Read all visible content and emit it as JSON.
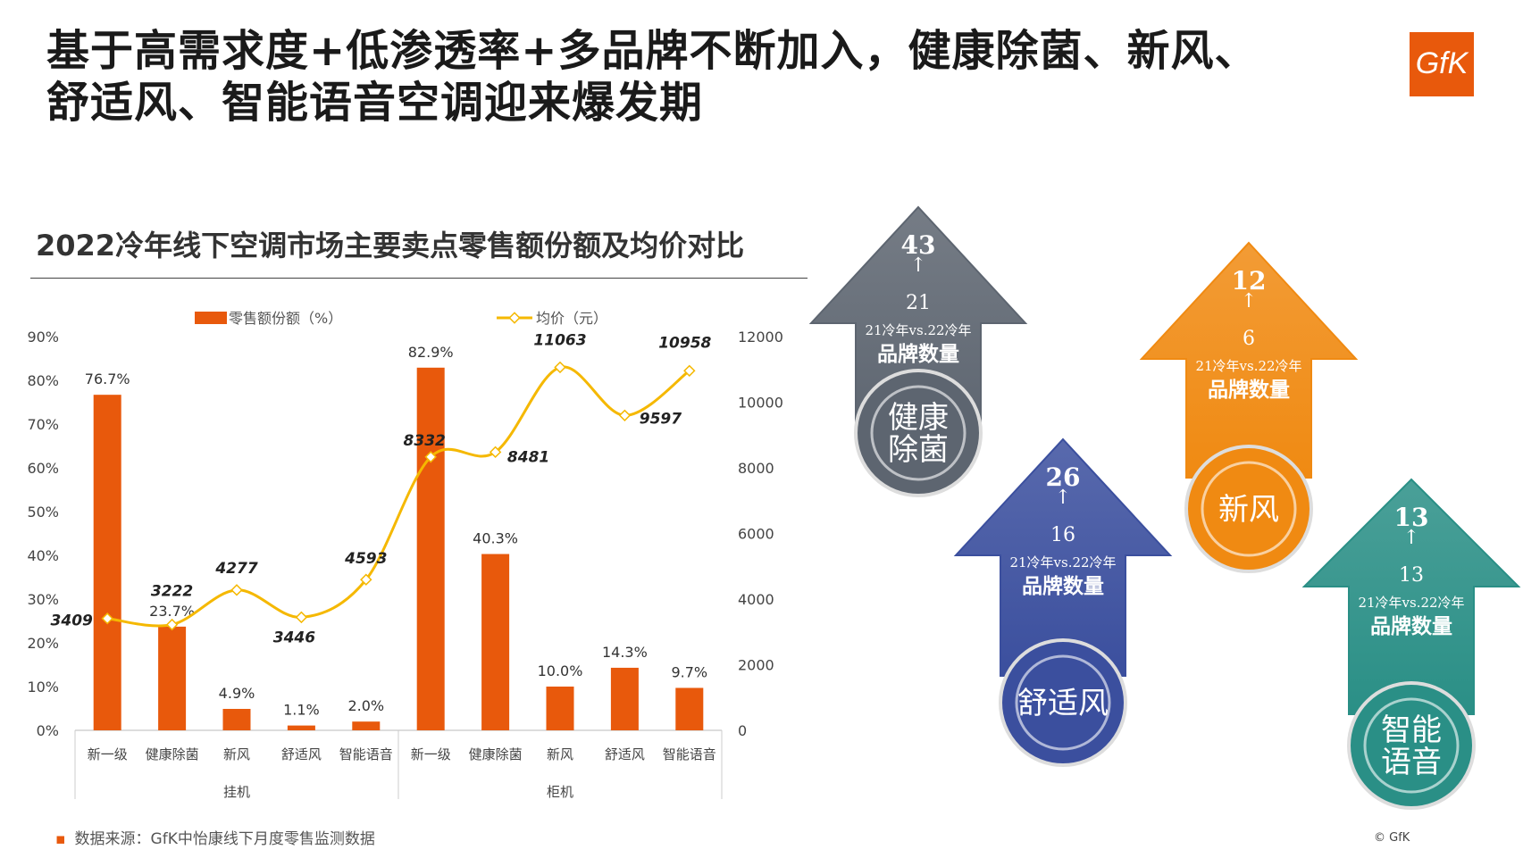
{
  "header": {
    "title_line1": "基于高需求度+低渗透率+多品牌不断加入，健康除菌、新风、",
    "title_line2": "舒适风、智能语音空调迎来爆发期",
    "logo_text": "GfK",
    "logo_color": "#e8590c"
  },
  "chart_title": "2022冷年线下空调市场主要卖点零售额份额及均价对比",
  "chart_data": {
    "type": "bar",
    "groups": [
      {
        "label": "挂机",
        "categories": [
          "新一级",
          "健康除菌",
          "新风",
          "舒适风",
          "智能语音"
        ]
      },
      {
        "label": "柜机",
        "categories": [
          "新一级",
          "健康除菌",
          "新风",
          "舒适风",
          "智能语音"
        ]
      }
    ],
    "series": [
      {
        "name": "零售额份额（%）",
        "type": "bar",
        "axis": "left",
        "color": "#e8590c",
        "values": [
          76.7,
          23.7,
          4.9,
          1.1,
          2.0,
          82.9,
          40.3,
          10.0,
          14.3,
          9.7
        ],
        "labels": [
          "76.7%",
          "23.7%",
          "4.9%",
          "1.1%",
          "2.0%",
          "82.9%",
          "40.3%",
          "10.0%",
          "14.3%",
          "9.7%"
        ]
      },
      {
        "name": "均价（元）",
        "type": "line",
        "axis": "right",
        "color": "#f5b800",
        "values": [
          3409,
          3222,
          4277,
          3446,
          4593,
          8332,
          8481,
          11063,
          9597,
          10958
        ]
      }
    ],
    "y_left": {
      "min": 0,
      "max": 90,
      "ticks": [
        "0%",
        "10%",
        "20%",
        "30%",
        "40%",
        "50%",
        "60%",
        "70%",
        "80%",
        "90%"
      ]
    },
    "y_right": {
      "min": 0,
      "max": 12000,
      "ticks": [
        "0",
        "2000",
        "4000",
        "6000",
        "8000",
        "10000",
        "12000"
      ]
    },
    "legend_position": "top"
  },
  "source": "数据来源：GfK中怡康线下月度零售监测数据",
  "copyright": "© GfK",
  "arrows": [
    {
      "feature": "健康除菌",
      "label_lines": [
        "健康",
        "除菌"
      ],
      "brands_22": "43",
      "brands_21": "21",
      "vs_text": "21冷年vs.22冷年",
      "caption": "品牌数量",
      "color": "#5d6570"
    },
    {
      "feature": "舒适风",
      "label_lines": [
        "舒适风"
      ],
      "brands_22": "26",
      "brands_21": "16",
      "vs_text": "21冷年vs.22冷年",
      "caption": "品牌数量",
      "color": "#3b4f9e"
    },
    {
      "feature": "新风",
      "label_lines": [
        "新风"
      ],
      "brands_22": "12",
      "brands_21": "6",
      "vs_text": "21冷年vs.22冷年",
      "caption": "品牌数量",
      "color": "#f08a12"
    },
    {
      "feature": "智能语音",
      "label_lines": [
        "智能",
        "语音"
      ],
      "brands_22": "13",
      "brands_21": "13",
      "vs_text": "21冷年vs.22冷年",
      "caption": "品牌数量",
      "color": "#2a8f86"
    }
  ]
}
